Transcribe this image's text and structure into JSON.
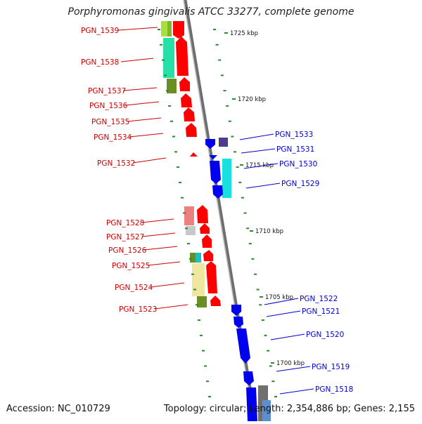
{
  "title": "Porphyromonas gingivalis ATCC 33277, complete genome",
  "accession_label": "Accession: NC_010729",
  "summary_label": "Topology: circular; Length: 2,354,886 bp; Genes: 2,155",
  "colors": {
    "forward_label": "#cc0000",
    "reverse_label": "#0000cc",
    "forward_gene": "#ff0000",
    "reverse_gene": "#0000ee",
    "backbone": "#8a8a8a",
    "dots": "#2a8a2a"
  },
  "scale_ticks": [
    {
      "label": "1725 kbp"
    },
    {
      "label": "1720 kbp"
    },
    {
      "label": "1715 kbp"
    },
    {
      "label": "1710 kbp"
    },
    {
      "label": "1705 kbp"
    },
    {
      "label": "1700 kbp"
    }
  ],
  "forward_genes": [
    {
      "label": "PGN_1539"
    },
    {
      "label": "PGN_1538"
    },
    {
      "label": "PGN_1537"
    },
    {
      "label": "PGN_1536"
    },
    {
      "label": "PGN_1535"
    },
    {
      "label": "PGN_1534"
    },
    {
      "label": "PGN_1532"
    },
    {
      "label": "PGN_1528"
    },
    {
      "label": "PGN_1527"
    },
    {
      "label": "PGN_1526"
    },
    {
      "label": "PGN_1525"
    },
    {
      "label": "PGN_1524"
    },
    {
      "label": "PGN_1523"
    }
  ],
  "reverse_genes": [
    {
      "label": "PGN_1533"
    },
    {
      "label": "PGN_1531"
    },
    {
      "label": "PGN_1530"
    },
    {
      "label": "PGN_1529"
    },
    {
      "label": "PGN_1522"
    },
    {
      "label": "PGN_1521"
    },
    {
      "label": "PGN_1520"
    },
    {
      "label": "PGN_1519"
    },
    {
      "label": "PGN_1518"
    }
  ]
}
